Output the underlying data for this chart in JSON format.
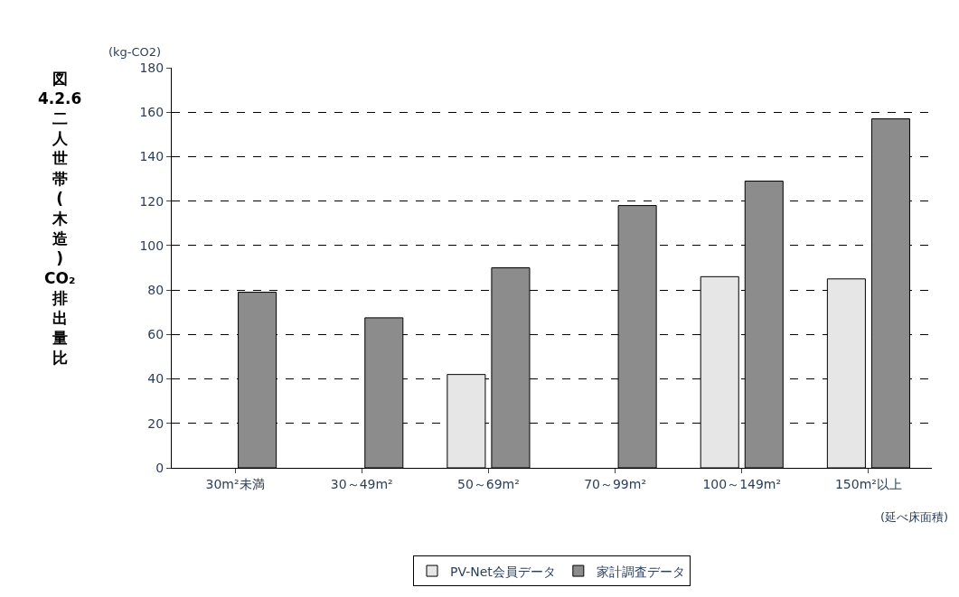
{
  "chart_data": {
    "type": "bar",
    "title": "図4.2.6二人世帯(木造)CO₂排出量比",
    "ylabel": "(kg-CO2)",
    "xlabel": "(延べ床面積)",
    "categories": [
      "30m²未満",
      "30～49m²",
      "50～69m²",
      "70～99m²",
      "100～149m²",
      "150m²以上"
    ],
    "series": [
      {
        "name": "PV-Net会員データ",
        "color": "#e6e6e6",
        "values": [
          null,
          null,
          42,
          null,
          86,
          85
        ]
      },
      {
        "name": "家計調査データ",
        "color": "#8c8c8c",
        "values": [
          79,
          67.5,
          90,
          118,
          129,
          157
        ]
      }
    ],
    "ylim": [
      0,
      180
    ],
    "yticks": [
      0,
      20,
      40,
      60,
      80,
      100,
      120,
      140,
      160,
      180
    ],
    "grid": "y",
    "legend": "bottom"
  }
}
